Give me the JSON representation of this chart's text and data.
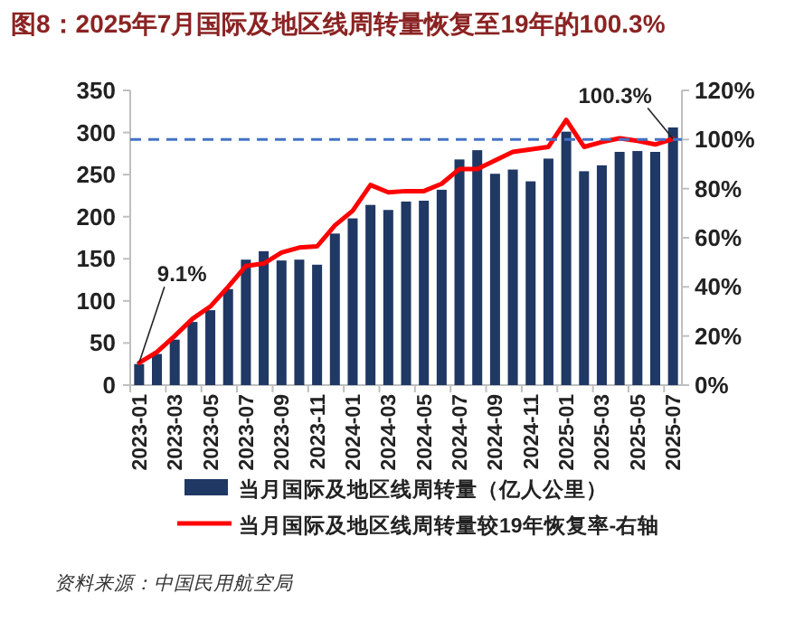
{
  "chart_data": {
    "type": "bar",
    "title": "图8：2025年7月国际及地区线周转量恢复至19年的100.3%",
    "categories": [
      "2023-01",
      null,
      "2023-03",
      null,
      "2023-05",
      null,
      "2023-07",
      null,
      "2023-09",
      null,
      "2023-11",
      null,
      "2024-01",
      null,
      "2024-03",
      null,
      "2024-05",
      null,
      "2024-07",
      null,
      "2024-09",
      null,
      "2024-11",
      null,
      "2025-01",
      null,
      "2025-03",
      null,
      "2025-05",
      null,
      "2025-07"
    ],
    "series": [
      {
        "name": "当月国际及地区线周转量（亿人公里）",
        "color": "#1f3864",
        "values": [
          25,
          37,
          54,
          75,
          89,
          114,
          149,
          159,
          148,
          149,
          143,
          180,
          198,
          214,
          208,
          218,
          219,
          232,
          268,
          279,
          251,
          256,
          242,
          269,
          301,
          254,
          261,
          277,
          278,
          277,
          306
        ]
      },
      {
        "name": "当月国际及地区线周转量较19年恢复率-右轴",
        "type": "line",
        "axis": "y2",
        "color": "#ff0000",
        "values": [
          9.1,
          13.5,
          20,
          27,
          32,
          40,
          48.5,
          49.5,
          54,
          56,
          56.5,
          65,
          71,
          81.5,
          78.5,
          79,
          79,
          82,
          88,
          88,
          91.5,
          95,
          96,
          97,
          108,
          97,
          99,
          100.5,
          99.5,
          98,
          100.3
        ]
      }
    ],
    "ylim": [
      0,
      350
    ],
    "yticks": [
      0,
      50,
      100,
      150,
      200,
      250,
      300,
      350
    ],
    "y2lim": [
      0,
      120
    ],
    "y2ticks": [
      {
        "value": 0,
        "label": "0%"
      },
      {
        "value": 20,
        "label": "20%"
      },
      {
        "value": 40,
        "label": "40%"
      },
      {
        "value": 60,
        "label": "60%"
      },
      {
        "value": 80,
        "label": "80%"
      },
      {
        "value": 100,
        "label": "100%"
      },
      {
        "value": 120,
        "label": "120%"
      }
    ],
    "ref_lines": [
      {
        "axis": "y2",
        "value": 100,
        "color": "#4472c4",
        "line_style": "dashed"
      }
    ],
    "annotations": [
      {
        "text": "9.1%",
        "x": "2023-01",
        "y": 26.5
      },
      {
        "text": "100.3%",
        "x": "2025-07",
        "y": 292.5
      },
      "资料来源：中国民用航空局"
    ],
    "legend": "bottom",
    "grid": false
  }
}
